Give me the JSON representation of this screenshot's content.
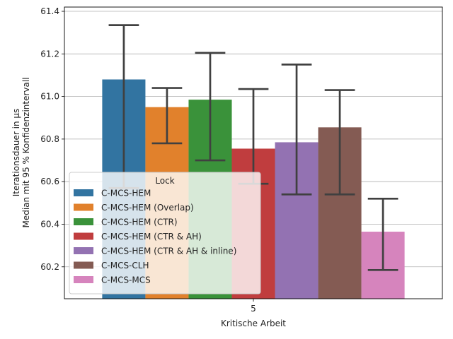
{
  "chart_data": {
    "type": "bar",
    "xlabel": "Kritische Arbeit",
    "ylabel_lines": [
      "Iterationsdauer in µs",
      "Median mit 95 % Konfidenzintervall"
    ],
    "categories": [
      "5"
    ],
    "ylim": [
      60.05,
      61.42
    ],
    "yticks": [
      60.2,
      60.4,
      60.6,
      60.8,
      61.0,
      61.2,
      61.4
    ],
    "ytick_labels": [
      "60.2",
      "60.4",
      "60.6",
      "60.8",
      "61.0",
      "61.2",
      "61.4"
    ],
    "grid": "horizontal",
    "legend": {
      "title": "Lock",
      "placement": "lower-left"
    },
    "series": [
      {
        "name": "C-MCS-HEM",
        "color": "#3274a1",
        "value": 61.08,
        "ci": [
          60.57,
          61.335
        ]
      },
      {
        "name": "C-MCS-HEM (Overlap)",
        "color": "#e1812c",
        "value": 60.95,
        "ci": [
          60.78,
          61.04
        ]
      },
      {
        "name": "C-MCS-HEM (CTR)",
        "color": "#3a923a",
        "value": 60.985,
        "ci": [
          60.7,
          61.205
        ]
      },
      {
        "name": "C-MCS-HEM (CTR & AH)",
        "color": "#c03d3e",
        "value": 60.755,
        "ci": [
          60.59,
          61.035
        ]
      },
      {
        "name": "C-MCS-HEM (CTR & AH & inline)",
        "color": "#9372b2",
        "value": 60.785,
        "ci": [
          60.54,
          61.15
        ]
      },
      {
        "name": "C-MCS-CLH",
        "color": "#845b53",
        "value": 60.855,
        "ci": [
          60.54,
          61.03
        ]
      },
      {
        "name": "C-MCS-MCS",
        "color": "#d684bd",
        "value": 60.365,
        "ci": [
          60.185,
          60.52
        ]
      }
    ]
  }
}
